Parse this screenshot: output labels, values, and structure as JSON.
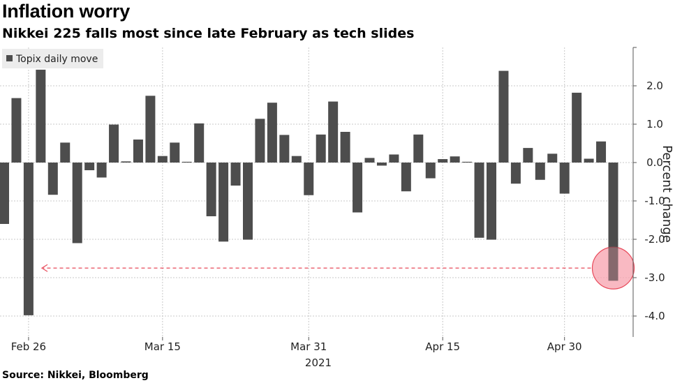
{
  "header": {
    "title": "Inflation worry",
    "subtitle": "Nikkei 225 falls most since late February as tech slides"
  },
  "footer": {
    "source": "Source: Nikkei, Bloomberg"
  },
  "colors": {
    "bar": "#4d4d4d",
    "grid": "#c8c8c8",
    "highlight_fill": "#f7a1ad",
    "highlight_stroke": "#e8495a",
    "arrow": "#e8495a",
    "legend_bg": "#ececec"
  },
  "chart_data": {
    "type": "bar",
    "legend": {
      "label": "Topix daily move",
      "position": "top-left"
    },
    "ylabel": "Percent change",
    "y_axis_side": "right",
    "ylim": [
      -4.5,
      3.0
    ],
    "yticks": [
      2.0,
      1.0,
      0.0,
      -1.0,
      -2.0,
      -3.0,
      -4.0
    ],
    "ytick_labels": [
      "2.0",
      "1.0",
      "0.0",
      "-1.0",
      "-2.0",
      "-3.0",
      "-4.0"
    ],
    "grid": true,
    "year_label": "2021",
    "xtick_labels": [
      {
        "label": "Feb 26",
        "index": 2
      },
      {
        "label": "Mar 15",
        "index": 13
      },
      {
        "label": "Mar 31",
        "index": 25
      },
      {
        "label": "Apr 15",
        "index": 36
      },
      {
        "label": "Apr 30",
        "index": 46
      }
    ],
    "values": [
      -1.6,
      1.68,
      -3.98,
      2.42,
      -0.84,
      0.52,
      -2.1,
      -0.2,
      -0.39,
      0.99,
      0.03,
      0.6,
      1.74,
      0.17,
      0.52,
      0.02,
      1.02,
      -1.4,
      -2.06,
      -0.6,
      -2.01,
      1.14,
      1.56,
      0.72,
      0.17,
      -0.85,
      0.73,
      1.59,
      0.8,
      -1.3,
      0.12,
      -0.08,
      0.21,
      -0.75,
      0.73,
      -0.41,
      0.09,
      0.16,
      0.02,
      -1.96,
      -2.01,
      2.39,
      -0.55,
      0.38,
      -0.45,
      0.23,
      -0.81,
      1.82,
      0.1,
      0.55,
      -3.08
    ],
    "annotation": {
      "highlight_index": 50,
      "value": -2.75,
      "type": "dashed arrow pointing left from highlighted bar"
    }
  }
}
